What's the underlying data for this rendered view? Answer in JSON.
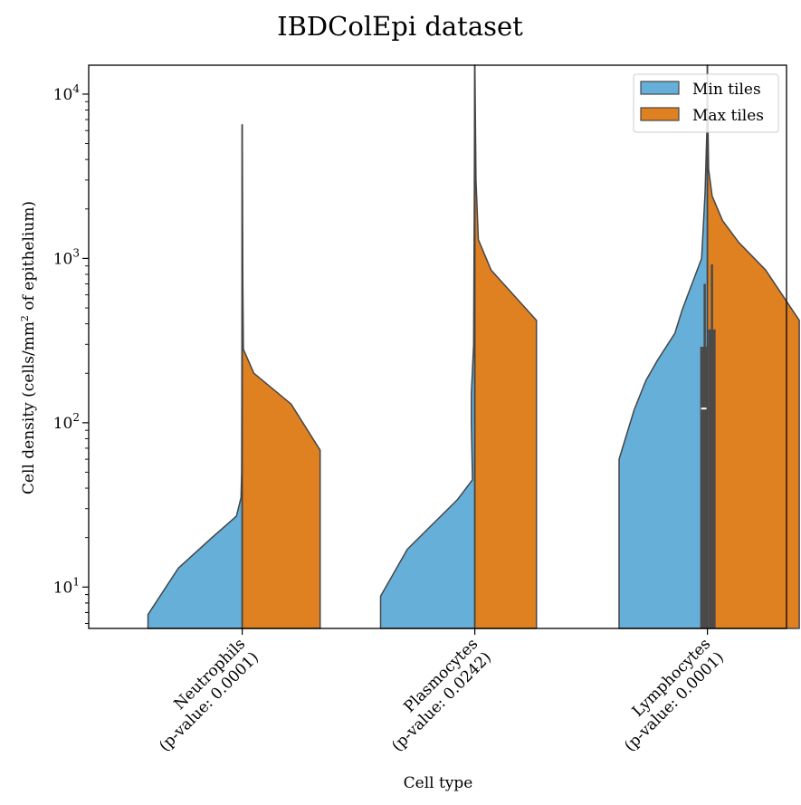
{
  "chart_data": {
    "type": "violin",
    "title": "IBDColEpi dataset",
    "xlabel": "Cell type",
    "ylabel": "Cell density (cells/mm² of epithelium)",
    "yscale": "log",
    "ylim": [
      5.6,
      15000
    ],
    "yticks": [
      {
        "value": 10,
        "base": "10",
        "exp": "1"
      },
      {
        "value": 100,
        "base": "10",
        "exp": "2"
      },
      {
        "value": 1000,
        "base": "10",
        "exp": "3"
      },
      {
        "value": 10000,
        "base": "10",
        "exp": "4"
      }
    ],
    "categories": [
      {
        "name": "Neutrophils",
        "pvalue": "(p-value: 0.0001)"
      },
      {
        "name": "Plasmocytes",
        "pvalue": "(p-value: 0.0242)"
      },
      {
        "name": "Lymphocytes",
        "pvalue": "(p-value: 0.0001)"
      }
    ],
    "legend": [
      {
        "label": "Min tiles",
        "color": "#66afd8"
      },
      {
        "label": "Max tiles",
        "color": "#e08121"
      }
    ],
    "colors": {
      "min": "#66afd8",
      "max": "#e08121",
      "edge": "#454545",
      "box": "#4a4a4a"
    },
    "series": [
      {
        "name": "Min tiles",
        "side": "left",
        "violins": [
          [
            [
              5.6,
              0.81
            ],
            [
              6.8,
              0.81
            ],
            [
              13,
              0.55
            ],
            [
              20,
              0.26
            ],
            [
              27,
              0.05
            ],
            [
              35,
              0.01
            ],
            [
              50,
              0.005
            ],
            [
              150,
              0.003
            ],
            [
              700,
              0.002
            ],
            [
              6500,
              0.001
            ]
          ],
          [
            [
              5.6,
              0.81
            ],
            [
              8.8,
              0.81
            ],
            [
              17,
              0.58
            ],
            [
              34,
              0.15
            ],
            [
              45,
              0.02
            ],
            [
              100,
              0.03
            ],
            [
              150,
              0.03
            ],
            [
              300,
              0.01
            ],
            [
              2000,
              0.005
            ],
            [
              15000,
              0.001
            ]
          ],
          [
            [
              5.6,
              0.76
            ],
            [
              60,
              0.76
            ],
            [
              120,
              0.63
            ],
            [
              180,
              0.53
            ],
            [
              240,
              0.43
            ],
            [
              350,
              0.28
            ],
            [
              480,
              0.22
            ],
            [
              650,
              0.15
            ],
            [
              1000,
              0.05
            ],
            [
              2500,
              0.02
            ],
            [
              6000,
              0.005
            ],
            [
              15000,
              0.001
            ]
          ]
        ]
      },
      {
        "name": "Max tiles",
        "side": "right",
        "violins": [
          [
            [
              5.6,
              0.67
            ],
            [
              68,
              0.67
            ],
            [
              130,
              0.42
            ],
            [
              200,
              0.1
            ],
            [
              280,
              0.01
            ],
            [
              700,
              0.005
            ],
            [
              6500,
              0.001
            ]
          ],
          [
            [
              5.6,
              0.53
            ],
            [
              420,
              0.53
            ],
            [
              850,
              0.14
            ],
            [
              1300,
              0.03
            ],
            [
              3000,
              0.01
            ],
            [
              15000,
              0.001
            ]
          ],
          [
            [
              5.6,
              0.79
            ],
            [
              420,
              0.79
            ],
            [
              850,
              0.5
            ],
            [
              1250,
              0.27
            ],
            [
              1700,
              0.13
            ],
            [
              2400,
              0.04
            ],
            [
              3500,
              0.01
            ],
            [
              8000,
              0.003
            ],
            [
              15000,
              0.001
            ]
          ]
        ]
      }
    ],
    "boxes": [
      {
        "category": 2,
        "median": 122,
        "min": {
          "q1": 5.6,
          "q3": 290,
          "whisker_high": 700
        },
        "max": {
          "q1": 5.6,
          "q3": 370,
          "whisker_high": 920
        }
      }
    ]
  }
}
